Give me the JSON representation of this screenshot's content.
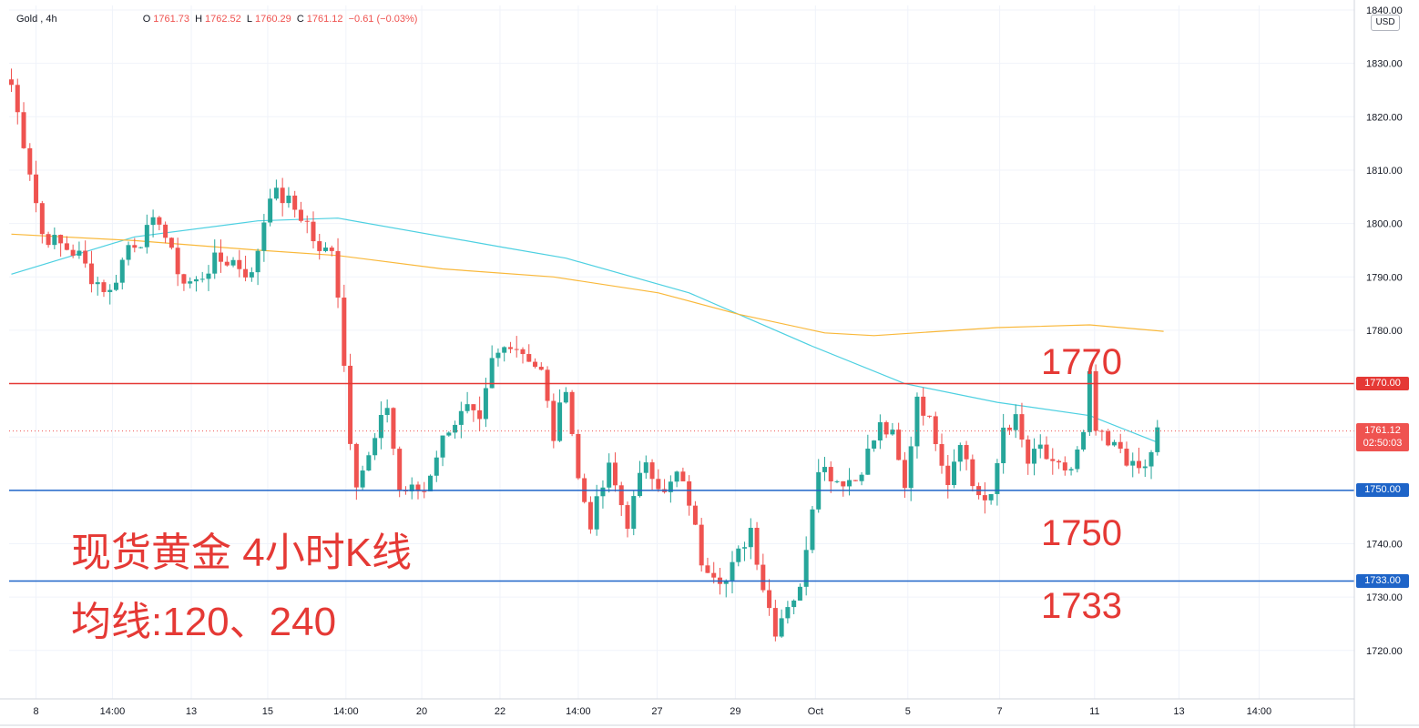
{
  "header": {
    "symbol": "Gold",
    "interval": "4h",
    "open_label": "O",
    "open": "1761.73",
    "high_label": "H",
    "high": "1762.52",
    "low_label": "L",
    "low": "1760.29",
    "close_label": "C",
    "close": "1761.12",
    "change": "−0.61 (−0.03%)"
  },
  "currency": "USD",
  "annotations": {
    "title": "现货黄金 4小时K线",
    "subtitle": "均线:120、240",
    "label_1770": "1770",
    "label_1750": "1750",
    "label_1733": "1733"
  },
  "price_tags": {
    "line_1770": "1770.00",
    "last_price": "1761.12",
    "countdown": "02:50:03",
    "line_1750": "1750.00",
    "line_1733": "1733.00"
  },
  "colors": {
    "up": "#26a69a",
    "down": "#ef5350",
    "ma120": "#4dd0e1",
    "ma240": "#f9b83a",
    "resistance": "#e53935",
    "support": "#1e64c8",
    "grid": "#f0f3fa"
  },
  "chart_data": {
    "type": "candlestick",
    "y_axis": {
      "min": 1715,
      "max": 1840,
      "ticks": [
        1720,
        1730,
        1740,
        1750,
        1760,
        1770,
        1780,
        1790,
        1800,
        1810,
        1820,
        1830,
        1840
      ],
      "tick_labels": [
        "1720.00",
        "1730.00",
        "1740.00",
        "1750.00",
        "1760.00",
        "1770.00",
        "1780.00",
        "1790.00",
        "1800.00",
        "1810.00",
        "1820.00",
        "1830.00",
        "1840.00"
      ]
    },
    "x_axis": {
      "bar_count": 200,
      "tick_labels": [
        "8",
        "14:00",
        "13",
        "15",
        "14:00",
        "20",
        "22",
        "14:00",
        "27",
        "29",
        "Oct",
        "5",
        "7",
        "11",
        "13",
        "14:00"
      ],
      "tick_index": [
        4,
        16.4,
        29.2,
        41.6,
        54.3,
        66.6,
        79.3,
        92,
        104.8,
        117.5,
        130.5,
        145.5,
        160.4,
        175.8,
        189.5,
        202.5
      ]
    },
    "horizontal_lines": [
      {
        "price": 1770,
        "color": "#e53935"
      },
      {
        "price": 1750,
        "color": "#1e64c8"
      },
      {
        "price": 1733,
        "color": "#1e64c8"
      }
    ],
    "ma120": [
      [
        0,
        1790.5
      ],
      [
        20,
        1797.5
      ],
      [
        40,
        1800.5
      ],
      [
        53,
        1801
      ],
      [
        80,
        1795.5
      ],
      [
        90,
        1793.5
      ],
      [
        110,
        1787
      ],
      [
        130,
        1777
      ],
      [
        145,
        1770
      ],
      [
        160,
        1766.5
      ],
      [
        175,
        1764
      ],
      [
        186,
        1759
      ]
    ],
    "ma240": [
      [
        0,
        1798
      ],
      [
        20,
        1796.8
      ],
      [
        40,
        1795
      ],
      [
        53,
        1794
      ],
      [
        70,
        1791.5
      ],
      [
        88,
        1790
      ],
      [
        105,
        1787
      ],
      [
        118,
        1783
      ],
      [
        132,
        1779.5
      ],
      [
        140,
        1779
      ],
      [
        160,
        1780.5
      ],
      [
        175,
        1781
      ],
      [
        187,
        1779.8
      ]
    ],
    "anchors": [
      [
        0,
        1826
      ],
      [
        3,
        1810
      ],
      [
        5,
        1798
      ],
      [
        8,
        1796
      ],
      [
        11,
        1794
      ],
      [
        13,
        1790
      ],
      [
        16,
        1787
      ],
      [
        19,
        1796
      ],
      [
        21,
        1797
      ],
      [
        24,
        1801
      ],
      [
        26,
        1794
      ],
      [
        28,
        1789
      ],
      [
        30,
        1789
      ],
      [
        33,
        1793
      ],
      [
        36,
        1793
      ],
      [
        39,
        1790
      ],
      [
        42,
        1806
      ],
      [
        45,
        1804
      ],
      [
        48,
        1800
      ],
      [
        50,
        1794
      ],
      [
        52,
        1796
      ],
      [
        53,
        1787
      ],
      [
        55,
        1760
      ],
      [
        56,
        1752
      ],
      [
        58,
        1756
      ],
      [
        61,
        1766
      ],
      [
        63,
        1750
      ],
      [
        67,
        1750
      ],
      [
        69,
        1757
      ],
      [
        71,
        1762
      ],
      [
        74,
        1765
      ],
      [
        76,
        1762
      ],
      [
        78,
        1774
      ],
      [
        81,
        1778
      ],
      [
        84,
        1775
      ],
      [
        86,
        1772
      ],
      [
        88,
        1760
      ],
      [
        90,
        1770
      ],
      [
        92,
        1752
      ],
      [
        94,
        1744
      ],
      [
        97,
        1754
      ],
      [
        100,
        1744
      ],
      [
        103,
        1756
      ],
      [
        106,
        1749
      ],
      [
        108,
        1753
      ],
      [
        110,
        1748
      ],
      [
        112,
        1737
      ],
      [
        116,
        1733
      ],
      [
        118,
        1738
      ],
      [
        120,
        1743
      ],
      [
        122,
        1732
      ],
      [
        124,
        1724
      ],
      [
        126,
        1729
      ],
      [
        128,
        1731
      ],
      [
        129,
        1740
      ],
      [
        131,
        1755
      ],
      [
        134,
        1752
      ],
      [
        137,
        1752
      ],
      [
        139,
        1757
      ],
      [
        141,
        1762
      ],
      [
        143,
        1760
      ],
      [
        145,
        1750
      ],
      [
        147,
        1768
      ],
      [
        150,
        1760
      ],
      [
        152,
        1752
      ],
      [
        154,
        1760
      ],
      [
        156,
        1751
      ],
      [
        158,
        1748
      ],
      [
        159,
        1748
      ],
      [
        161,
        1762
      ],
      [
        163,
        1763
      ],
      [
        165,
        1755
      ],
      [
        167,
        1758
      ],
      [
        169,
        1754
      ],
      [
        172,
        1754
      ],
      [
        174,
        1760
      ],
      [
        175,
        1771
      ],
      [
        176,
        1761
      ],
      [
        178,
        1758
      ],
      [
        180,
        1758
      ],
      [
        182,
        1754
      ],
      [
        184,
        1754
      ],
      [
        186,
        1761
      ]
    ]
  }
}
